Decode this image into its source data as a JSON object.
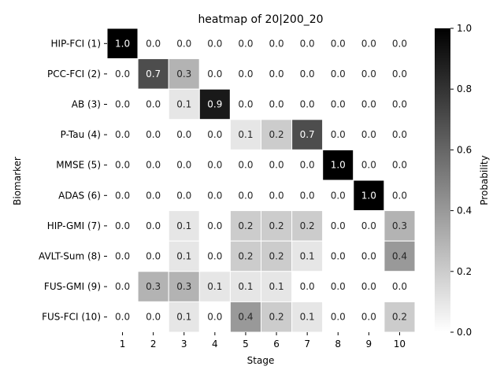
{
  "chart_data": {
    "type": "heatmap",
    "title": "heatmap of 20|200_20",
    "xlabel": "Stage",
    "ylabel": "Biomarker",
    "x_categories": [
      "1",
      "2",
      "3",
      "4",
      "5",
      "6",
      "7",
      "8",
      "9",
      "10"
    ],
    "y_categories": [
      "HIP-FCI (1)",
      "PCC-FCI (2)",
      "AB (3)",
      "P-Tau (4)",
      "MMSE (5)",
      "ADAS (6)",
      "HIP-GMI (7)",
      "AVLT-Sum (8)",
      "FUS-GMI (9)",
      "FUS-FCI (10)"
    ],
    "values": [
      [
        1.0,
        0.0,
        0.0,
        0.0,
        0.0,
        0.0,
        0.0,
        0.0,
        0.0,
        0.0
      ],
      [
        0.0,
        0.7,
        0.3,
        0.0,
        0.0,
        0.0,
        0.0,
        0.0,
        0.0,
        0.0
      ],
      [
        0.0,
        0.0,
        0.1,
        0.9,
        0.0,
        0.0,
        0.0,
        0.0,
        0.0,
        0.0
      ],
      [
        0.0,
        0.0,
        0.0,
        0.0,
        0.1,
        0.2,
        0.7,
        0.0,
        0.0,
        0.0
      ],
      [
        0.0,
        0.0,
        0.0,
        0.0,
        0.0,
        0.0,
        0.0,
        1.0,
        0.0,
        0.0
      ],
      [
        0.0,
        0.0,
        0.0,
        0.0,
        0.0,
        0.0,
        0.0,
        0.0,
        1.0,
        0.0
      ],
      [
        0.0,
        0.0,
        0.1,
        0.0,
        0.2,
        0.2,
        0.2,
        0.0,
        0.0,
        0.3
      ],
      [
        0.0,
        0.0,
        0.1,
        0.0,
        0.2,
        0.2,
        0.1,
        0.0,
        0.0,
        0.4
      ],
      [
        0.0,
        0.3,
        0.3,
        0.1,
        0.1,
        0.1,
        0.0,
        0.0,
        0.0,
        0.0
      ],
      [
        0.0,
        0.0,
        0.1,
        0.0,
        0.4,
        0.2,
        0.1,
        0.0,
        0.0,
        0.2
      ]
    ],
    "colorbar": {
      "label": "Probability",
      "range": [
        0.0,
        1.0
      ],
      "ticks": [
        "0.0",
        "0.2",
        "0.4",
        "0.6",
        "0.8",
        "1.0"
      ],
      "low_color": "#ffffff",
      "high_color": "#000000"
    },
    "colormap": "Greys",
    "cell_gap_color": "#ffffff"
  }
}
